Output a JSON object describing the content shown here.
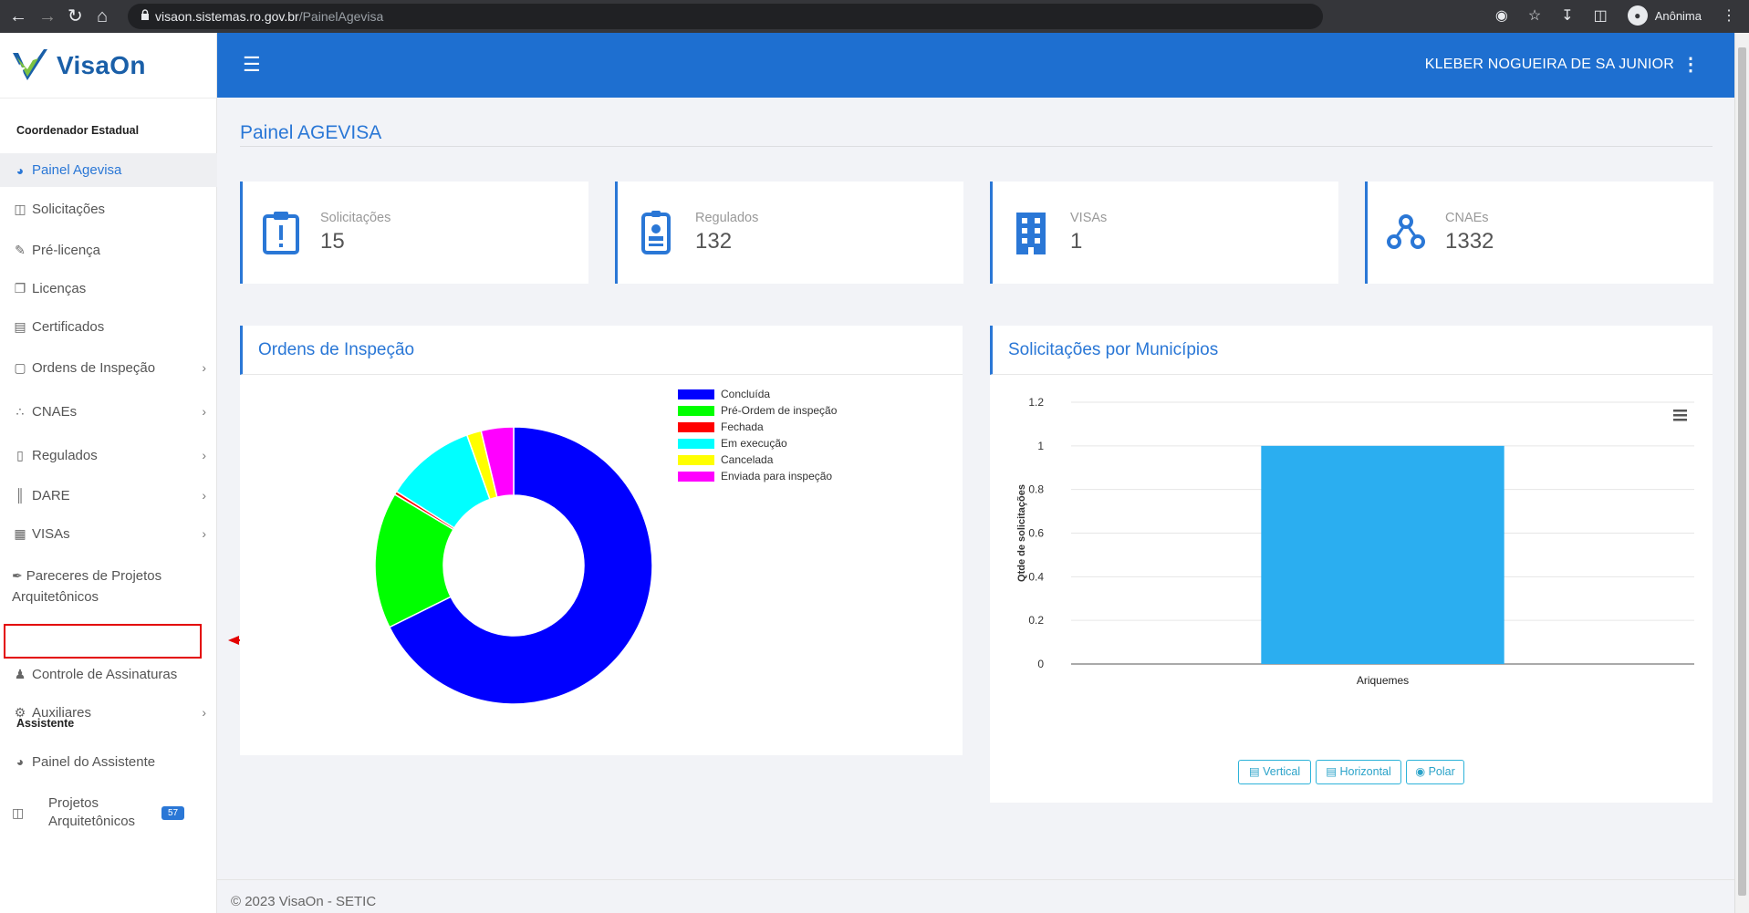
{
  "browser": {
    "url_host": "visaon.sistemas.ro.gov.br",
    "url_path": "/PainelAgevisa",
    "profile_label": "Anônima"
  },
  "app": {
    "name": "VisaOn"
  },
  "header": {
    "user_name": "KLEBER NOGUEIRA DE SA JUNIOR"
  },
  "sidebar": {
    "section1": "Coordenador Estadual",
    "section2": "Assistente",
    "items": [
      {
        "label": "Painel Agevisa"
      },
      {
        "label": "Solicitações"
      },
      {
        "label": "Pré-licença"
      },
      {
        "label": "Licenças"
      },
      {
        "label": "Certificados"
      },
      {
        "label": "Ordens de Inspeção"
      },
      {
        "label": "CNAEs"
      },
      {
        "label": "Regulados"
      },
      {
        "label": "DARE"
      },
      {
        "label": "VISAs"
      },
      {
        "label": "Pareceres de Projetos Arquitetônicos"
      },
      {
        "label": "Controle de Assinaturas"
      },
      {
        "label": "Auxiliares"
      },
      {
        "label": "Painel do Assistente"
      },
      {
        "label": "Projetos Arquitetônicos",
        "badge": "57"
      }
    ]
  },
  "page": {
    "title": "Painel AGEVISA"
  },
  "stats": [
    {
      "label": "Solicitações",
      "value": "15"
    },
    {
      "label": "Regulados",
      "value": "132"
    },
    {
      "label": "VISAs",
      "value": "1"
    },
    {
      "label": "CNAEs",
      "value": "1332"
    }
  ],
  "panels": {
    "orders_title": "Ordens de Inspeção",
    "municipios_title": "Solicitações por Municípios"
  },
  "chart_data": [
    {
      "type": "pie",
      "title": "Ordens de Inspeção",
      "donut": true,
      "categories": [
        "Concluída",
        "Pré-Ordem de inspeção",
        "Fechada",
        "Em execução",
        "Cancelada",
        "Enviada para inspeção"
      ],
      "values": [
        68,
        16,
        0.4,
        10.6,
        1.7,
        3.8
      ],
      "colors": [
        "#0000ff",
        "#00ff00",
        "#ff0000",
        "#00ffff",
        "#ffff00",
        "#ff00ff"
      ],
      "legend": "top-right"
    },
    {
      "type": "bar",
      "title": "Solicitações por Municípios",
      "categories": [
        "Ariquemes"
      ],
      "values": [
        1
      ],
      "ylabel": "Qtde de solicitações",
      "xlabel": "",
      "ylim": [
        0,
        1.2
      ],
      "yticks": [
        "0",
        "0.2",
        "0.4",
        "0.6",
        "0.8",
        "1",
        "1.2"
      ],
      "color": "#2baef0"
    }
  ],
  "chart_buttons": [
    "Vertical",
    "Horizontal",
    "Polar"
  ],
  "footer": "© 2023 VisaOn - SETIC"
}
